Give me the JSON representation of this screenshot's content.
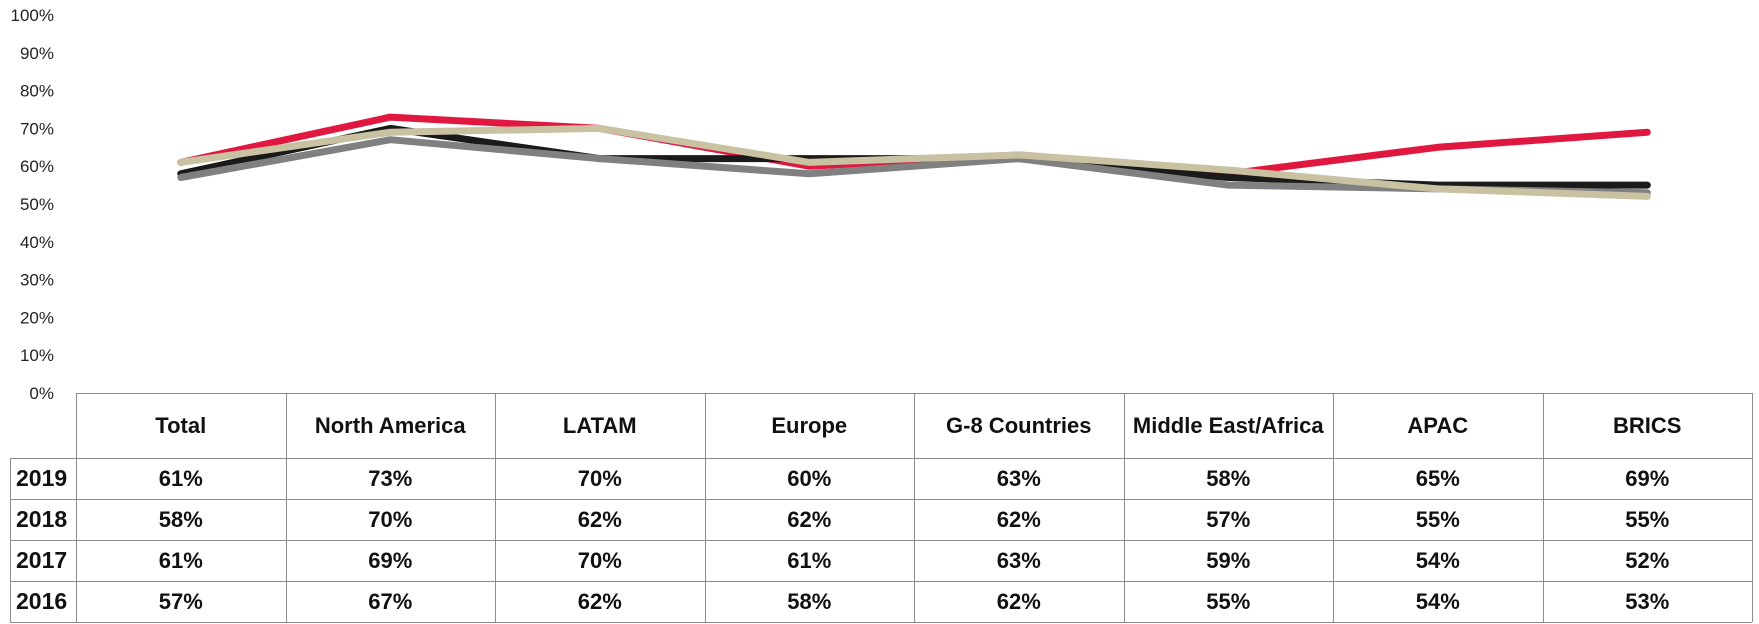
{
  "chart_data": {
    "type": "line",
    "title": "",
    "xlabel": "",
    "ylabel": "",
    "ylim": [
      0,
      100
    ],
    "y_ticks": [
      "0%",
      "10%",
      "20%",
      "30%",
      "40%",
      "50%",
      "60%",
      "70%",
      "80%",
      "90%",
      "100%"
    ],
    "grid": false,
    "categories": [
      "Total",
      "North America",
      "LATAM",
      "Europe",
      "G-8 Countries",
      "Middle East/Africa",
      "APAC",
      "BRICS"
    ],
    "series": [
      {
        "name": "2019",
        "color": "#e0173f",
        "values": [
          61,
          73,
          70,
          60,
          63,
          58,
          65,
          69
        ],
        "labels": [
          "61%",
          "73%",
          "70%",
          "60%",
          "63%",
          "58%",
          "65%",
          "69%"
        ]
      },
      {
        "name": "2018",
        "color": "#1a1a1a",
        "values": [
          58,
          70,
          62,
          62,
          62,
          57,
          55,
          55
        ],
        "labels": [
          "58%",
          "70%",
          "62%",
          "62%",
          "62%",
          "57%",
          "55%",
          "55%"
        ]
      },
      {
        "name": "2017",
        "color": "#c8c2a2",
        "values": [
          61,
          69,
          70,
          61,
          63,
          59,
          54,
          52
        ],
        "labels": [
          "61%",
          "69%",
          "70%",
          "61%",
          "63%",
          "59%",
          "54%",
          "52%"
        ]
      },
      {
        "name": "2016",
        "color": "#808080",
        "values": [
          57,
          67,
          62,
          58,
          62,
          55,
          54,
          53
        ],
        "labels": [
          "57%",
          "67%",
          "62%",
          "58%",
          "62%",
          "55%",
          "54%",
          "53%"
        ]
      }
    ],
    "draw_order": [
      "2019",
      "2018",
      "2016",
      "2017"
    ]
  }
}
